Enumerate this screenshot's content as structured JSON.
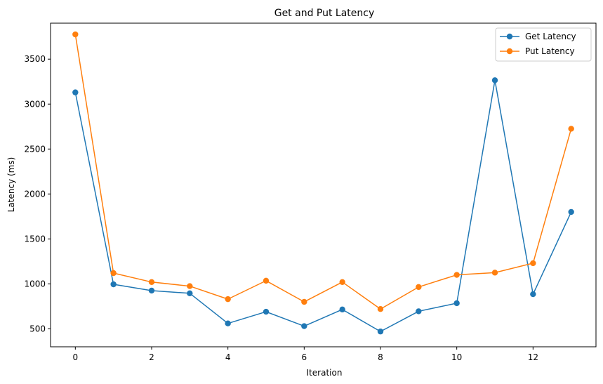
{
  "chart_data": {
    "type": "line",
    "title": "Get and Put Latency",
    "xlabel": "Iteration",
    "ylabel": "Latency (ms)",
    "x": [
      0,
      1,
      2,
      3,
      4,
      5,
      6,
      7,
      8,
      9,
      10,
      11,
      12,
      13
    ],
    "xlim": [
      -0.65,
      13.65
    ],
    "ylim": [
      300,
      3900
    ],
    "x_ticks": [
      0,
      2,
      4,
      6,
      8,
      10,
      12
    ],
    "y_ticks": [
      500,
      1000,
      1500,
      2000,
      2500,
      3000,
      3500
    ],
    "grid": false,
    "legend": "top-right",
    "series": [
      {
        "name": "Get Latency",
        "color": "#1f77b4",
        "marker": "circle",
        "values": [
          3130,
          995,
          925,
          895,
          560,
          690,
          530,
          715,
          470,
          695,
          785,
          3265,
          885,
          1800
        ]
      },
      {
        "name": "Put Latency",
        "color": "#ff7f0e",
        "marker": "circle",
        "values": [
          3775,
          1120,
          1020,
          975,
          830,
          1035,
          800,
          1020,
          720,
          965,
          1100,
          1125,
          1230,
          2725
        ]
      }
    ]
  }
}
